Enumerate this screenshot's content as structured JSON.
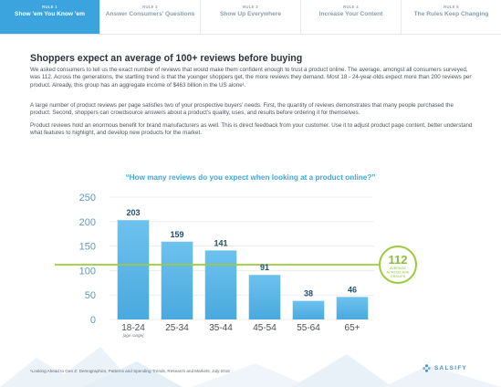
{
  "nav": {
    "items": [
      {
        "num": "RULE 1",
        "label": "Show 'em You Know 'em",
        "active": true
      },
      {
        "num": "RULE 2",
        "label": "Answer Consumers' Questions",
        "active": false
      },
      {
        "num": "RULE 3",
        "label": "Show Up Everywhere",
        "active": false
      },
      {
        "num": "RULE 4",
        "label": "Increase Your Content",
        "active": false
      },
      {
        "num": "RULE 5",
        "label": "The Rules Keep Changing",
        "active": false
      }
    ]
  },
  "headline": "Shoppers expect an average of 100+ reviews before buying",
  "paragraphs": [
    "We asked consumers to tell us the exact number of reviews that would make them confident enough to trust a product online. The average, amongst all consumers surveyed, was 112. Across the generations, the startling trend is that the younger shoppers get, the more reviews they demand. Most 18 - 24-year-olds expect more than 200 reviews per product. Already, this group has an aggregate income of $463 billion in the US alone¹.",
    "A large number of product reviews per page satisfies two of your prospective buyers' needs. First, the quantity of reviews demonstrates that many people purchased the product. Second, shoppers can crowdsource answers about a product's quality, uses, and results before ordering it for themselves.",
    "Product reviews hold an enormous benefit for brand manufacturers as well. This is direct feedback from your customer. Use it to adjust product page content, better understand what features to highlight, and develop new products for the market."
  ],
  "chart_data": {
    "type": "bar",
    "title": "“How many reviews do you expect when looking at a product online?”",
    "categories": [
      "18-24",
      "25-34",
      "35-44",
      "45-54",
      "55-64",
      "65+"
    ],
    "values": [
      203,
      159,
      141,
      91,
      38,
      46
    ],
    "xlabel_note": "[age range]",
    "ylim": [
      0,
      250
    ],
    "yticks": [
      0,
      50,
      100,
      150,
      200,
      250
    ],
    "grid": true,
    "average": {
      "value": 112,
      "label": "AVERAGE ACROSS AGE GROUPS"
    },
    "colors": {
      "bar": "#5bb6e6",
      "average_line": "#9ccb3b",
      "value_label": "#22506e",
      "tick": "#5b9bc4",
      "grid": "#dfe6ed"
    }
  },
  "footer": {
    "note": "¹Looking Ahead to Gen Z: Demographics, Patterns and Spending Trends, Research and Markets, July 2016",
    "logo_text": "SALSIFY",
    "logo_icon": "salsify-logo-icon"
  }
}
